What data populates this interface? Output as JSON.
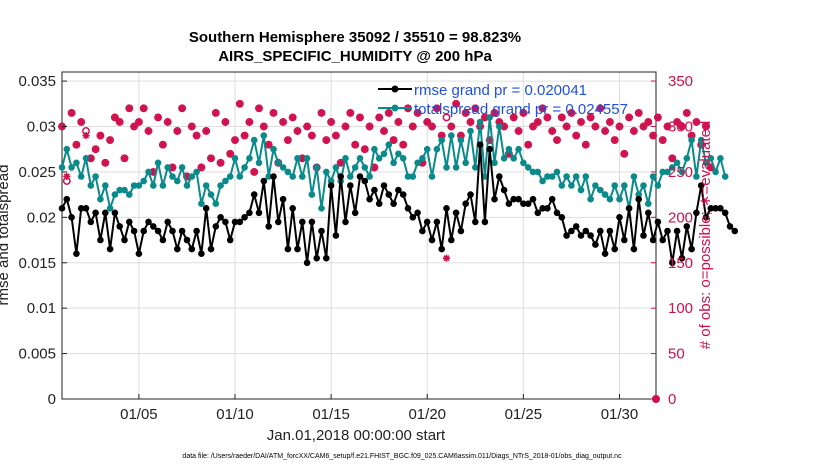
{
  "chart_data": {
    "type": "line",
    "title_line1": "Southern Hemisphere 35092 / 35510 = 98.823%",
    "title_line2": "AIRS_SPECIFIC_HUMIDITY @ 200 hPa",
    "xlabel": "Jan.01,2018 00:00:00 start",
    "ylabel_left": "rmse and totalspread",
    "ylabel_right": "# of obs: o=possible; ∗=evaluated",
    "footnote": "data file: /Users/raeder/DAI/ATM_forcXX/CAM6_setup/f.e21.FHIST_BGC.f09_025.CAM6assim.011/Diags_NTrS_2018-01/obs_diag_output.nc",
    "x_range": [
      1,
      31.9
    ],
    "ylim_left": [
      0,
      0.036
    ],
    "ylim_right": [
      0,
      360
    ],
    "x_ticks": [
      5,
      10,
      15,
      20,
      25,
      30
    ],
    "x_tick_labels": [
      "01/05",
      "01/10",
      "01/15",
      "01/20",
      "01/25",
      "01/30"
    ],
    "y_left_ticks": [
      0,
      0.005,
      0.01,
      0.015,
      0.02,
      0.025,
      0.03,
      0.035
    ],
    "y_left_tick_labels": [
      "0",
      "0.005",
      "0.01",
      "0.015",
      "0.02",
      "0.025",
      "0.03",
      "0.035"
    ],
    "y_right_ticks": [
      0,
      50,
      100,
      150,
      200,
      250,
      300,
      350
    ],
    "y_right_tick_labels": [
      "0",
      "50",
      "100",
      "150",
      "200",
      "250",
      "300",
      "350"
    ],
    "legend": {
      "location": "top-right",
      "entries": [
        "rmse grand pr = 0.020041",
        "totalspread grand pr = 0.024557"
      ]
    },
    "colors": {
      "rmse": "#000000",
      "totalspread": "#0a8a8a",
      "obs": "#d0104c",
      "legend_text": "#1f4fe0",
      "grid": "#dddddd"
    },
    "series": [
      {
        "name": "rmse",
        "x_start": 1.0,
        "x_step": 0.25,
        "values": [
          0.021,
          0.022,
          0.02,
          0.016,
          0.021,
          0.021,
          0.0195,
          0.0205,
          0.0175,
          0.0205,
          0.0165,
          0.0205,
          0.019,
          0.0175,
          0.0195,
          0.0185,
          0.016,
          0.0185,
          0.0195,
          0.019,
          0.0185,
          0.0175,
          0.0195,
          0.0185,
          0.0165,
          0.0185,
          0.0175,
          0.0165,
          0.0185,
          0.016,
          0.021,
          0.0165,
          0.019,
          0.02,
          0.0195,
          0.0175,
          0.0195,
          0.0195,
          0.02,
          0.0205,
          0.0225,
          0.0205,
          0.024,
          0.019,
          0.0245,
          0.0195,
          0.022,
          0.0165,
          0.021,
          0.0165,
          0.0195,
          0.015,
          0.0195,
          0.0155,
          0.0185,
          0.0155,
          0.0235,
          0.018,
          0.0245,
          0.0195,
          0.0235,
          0.0205,
          0.0245,
          0.024,
          0.022,
          0.023,
          0.0215,
          0.0235,
          0.0225,
          0.0215,
          0.023,
          0.0225,
          0.021,
          0.02,
          0.0205,
          0.0185,
          0.0195,
          0.0175,
          0.0195,
          0.0165,
          0.021,
          0.0175,
          0.0205,
          0.0185,
          0.0215,
          0.0225,
          0.0195,
          0.028,
          0.0195,
          0.0275,
          0.022,
          0.0245,
          0.023,
          0.0215,
          0.022,
          0.022,
          0.0215,
          0.0215,
          0.022,
          0.0205,
          0.021,
          0.021,
          0.022,
          0.0205,
          0.02,
          0.018,
          0.0185,
          0.019,
          0.018,
          0.0185,
          0.018,
          0.017,
          0.0185,
          0.016,
          0.0185,
          0.0165,
          0.02,
          0.0175,
          0.021,
          0.0165,
          0.022,
          0.018,
          0.0205,
          0.0175,
          0.0195,
          0.0175,
          0.0185,
          0.015,
          0.0185,
          0.0155,
          0.019,
          0.0165,
          0.0205,
          0.0235,
          0.02,
          0.021,
          0.021,
          0.021,
          0.0205,
          0.019,
          0.0185
        ]
      },
      {
        "name": "totalspread",
        "x_start": 1.0,
        "x_step": 0.25,
        "values": [
          0.0255,
          0.0275,
          0.0255,
          0.026,
          0.0245,
          0.0265,
          0.0235,
          0.0245,
          0.022,
          0.0235,
          0.021,
          0.0225,
          0.023,
          0.023,
          0.0225,
          0.0235,
          0.0235,
          0.024,
          0.025,
          0.0235,
          0.026,
          0.0235,
          0.0255,
          0.0245,
          0.024,
          0.0255,
          0.0235,
          0.0245,
          0.025,
          0.0215,
          0.0235,
          0.0225,
          0.0215,
          0.0235,
          0.024,
          0.0245,
          0.0265,
          0.0245,
          0.0255,
          0.0265,
          0.0285,
          0.026,
          0.029,
          0.0245,
          0.0275,
          0.026,
          0.0255,
          0.025,
          0.0245,
          0.0265,
          0.0245,
          0.0265,
          0.0225,
          0.0255,
          0.021,
          0.025,
          0.024,
          0.0255,
          0.024,
          0.0265,
          0.0245,
          0.0255,
          0.0265,
          0.0255,
          0.0245,
          0.0275,
          0.0265,
          0.027,
          0.028,
          0.026,
          0.027,
          0.0265,
          0.0245,
          0.0245,
          0.026,
          0.0265,
          0.0275,
          0.0245,
          0.0275,
          0.0285,
          0.0255,
          0.029,
          0.0255,
          0.0285,
          0.026,
          0.0295,
          0.0255,
          0.0305,
          0.0245,
          0.031,
          0.026,
          0.03,
          0.0265,
          0.0275,
          0.0265,
          0.0275,
          0.026,
          0.0255,
          0.025,
          0.025,
          0.024,
          0.0245,
          0.0245,
          0.025,
          0.0235,
          0.0245,
          0.0235,
          0.0245,
          0.023,
          0.0245,
          0.022,
          0.0235,
          0.023,
          0.0225,
          0.022,
          0.0235,
          0.022,
          0.0235,
          0.021,
          0.0245,
          0.0225,
          0.0235,
          0.0215,
          0.0245,
          0.0235,
          0.025,
          0.025,
          0.0255,
          0.026,
          0.025,
          0.0265,
          0.0285,
          0.0245,
          0.0285,
          0.026,
          0.0265,
          0.025,
          0.0265,
          0.0245
        ]
      },
      {
        "name": "obs possible",
        "x_start": 1.0,
        "x_step": 0.25,
        "values": [
          300,
          240,
          315,
          280,
          305,
          295,
          265,
          275,
          290,
          260,
          285,
          310,
          305,
          265,
          320,
          300,
          305,
          320,
          295,
          250,
          310,
          280,
          305,
          255,
          295,
          320,
          245,
          300,
          290,
          255,
          295,
          265,
          315,
          260,
          305,
          270,
          285,
          325,
          290,
          305,
          250,
          320,
          300,
          280,
          315,
          260,
          305,
          285,
          310,
          295,
          265,
          300,
          290,
          255,
          315,
          285,
          305,
          290,
          260,
          300,
          315,
          280,
          310,
          275,
          300,
          255,
          310,
          295,
          315,
          285,
          305,
          280,
          320,
          300,
          315,
          260,
          305,
          300,
          320,
          290,
          310,
          300,
          325,
          290,
          315,
          305,
          320,
          300,
          310,
          285,
          315,
          305,
          300,
          270,
          310,
          295,
          315,
          280,
          300,
          305,
          320,
          310,
          295,
          285,
          310,
          300,
          315,
          290,
          305,
          280,
          310,
          300,
          320,
          295,
          305,
          285,
          300,
          270,
          310,
          295,
          315,
          300,
          305,
          290,
          310,
          285,
          300,
          265,
          305,
          300,
          315,
          290,
          305,
          280,
          300,
          255
        ]
      },
      {
        "name": "obs evaluated",
        "x_start": 1.0,
        "x_step": 0.25,
        "values": [
          300,
          245,
          315,
          280,
          305,
          290,
          265,
          275,
          290,
          260,
          285,
          310,
          305,
          265,
          320,
          300,
          305,
          320,
          295,
          250,
          310,
          280,
          305,
          255,
          295,
          320,
          245,
          300,
          290,
          255,
          295,
          265,
          315,
          260,
          305,
          270,
          285,
          325,
          290,
          305,
          250,
          320,
          300,
          280,
          315,
          260,
          305,
          285,
          310,
          295,
          265,
          300,
          290,
          255,
          315,
          285,
          305,
          290,
          260,
          300,
          315,
          280,
          310,
          275,
          300,
          255,
          310,
          295,
          315,
          285,
          305,
          280,
          320,
          300,
          315,
          260,
          305,
          300,
          320,
          290,
          155,
          300,
          325,
          290,
          315,
          305,
          320,
          300,
          310,
          285,
          315,
          305,
          300,
          270,
          310,
          295,
          315,
          280,
          300,
          305,
          320,
          310,
          295,
          285,
          310,
          300,
          315,
          290,
          305,
          280,
          310,
          300,
          320,
          295,
          305,
          285,
          300,
          270,
          310,
          295,
          315,
          300,
          305,
          290,
          310,
          285,
          300,
          265,
          305,
          300,
          315,
          290,
          305,
          280,
          300,
          255
        ]
      }
    ]
  }
}
